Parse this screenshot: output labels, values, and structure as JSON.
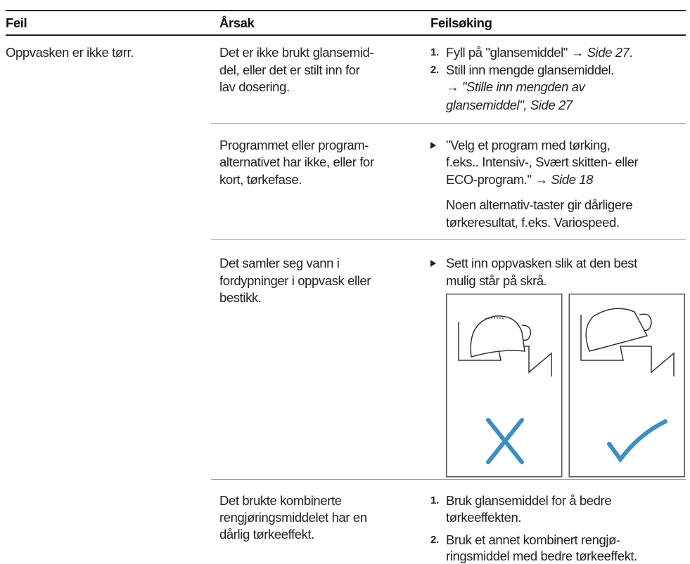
{
  "header": {
    "columns": [
      "Feil",
      "Årsak",
      "Feilsøking"
    ]
  },
  "table": {
    "rows": [
      {
        "problem": "Oppvasken er ikke tørr.",
        "causes": [
          {
            "cause": [
              "Det er ikke brukt glansemid-",
              "del, eller det er stilt inn for",
              "lav dosering."
            ],
            "remedies": [
              {
                "marker": "1.",
                "lines": [
                  [
                    {
                      "text": "Fyll på \"glansemiddel\" → "
                    },
                    {
                      "text": "Side 27",
                      "italic": true
                    },
                    {
                      "text": "."
                    }
                  ]
                ]
              },
              {
                "marker": "2.",
                "lines": [
                  [
                    {
                      "text": "Still inn mengde glansemiddel."
                    }
                  ],
                  [
                    {
                      "text": "→ "
                    },
                    {
                      "text": "\"Stille inn mengden av",
                      "italic": true
                    }
                  ],
                  [
                    {
                      "text": "glansemiddel\", Side 27",
                      "italic": true
                    }
                  ]
                ]
              }
            ]
          },
          {
            "cause": [
              "Programmet eller program-",
              "alternativet har ikke, eller for",
              "kort, tørkefase."
            ],
            "remedies": [
              {
                "bullet": true,
                "lines": [
                  [
                    {
                      "text": "\"Velg et program med tørking,"
                    }
                  ],
                  [
                    {
                      "text": "f.eks.. Intensiv-, Svært skitten- eller"
                    }
                  ],
                  [
                    {
                      "text": "ECO-program.\" → "
                    },
                    {
                      "text": "Side 18",
                      "italic": true
                    }
                  ]
                ]
              },
              {
                "lines": [
                  [
                    {
                      "text": "Noen alternativ-taster gir dårligere"
                    }
                  ],
                  [
                    {
                      "text": "tørkeresultat, f.eks. Variospeed."
                    }
                  ]
                ]
              }
            ]
          },
          {
            "cause": [
              "Det samler seg vann i",
              "fordypninger i oppvask eller",
              "bestikk."
            ],
            "remedies": [
              {
                "bullet": true,
                "lines": [
                  [
                    {
                      "text": "Sett inn oppvasken slik at den best"
                    }
                  ],
                  [
                    {
                      "text": "mulig står på skrå."
                    }
                  ]
                ]
              }
            ]
          },
          {
            "cause": [
              "Det brukte kombinerte",
              "rengjøringsmiddelet har en",
              "dårlig tørkeeffekt."
            ],
            "remedies": [
              {
                "marker": "1.",
                "lines": [
                  [
                    {
                      "text": "Bruk glansemiddel for å bedre"
                    }
                  ],
                  [
                    {
                      "text": "tørkeeffekten."
                    }
                  ]
                ]
              },
              {
                "marker": "2.",
                "lines": [
                  [
                    {
                      "text": "Bruk et annet kombinert rengjø-"
                    }
                  ],
                  [
                    {
                      "text": "ringsmiddel med bedre tørkeeffekt."
                    }
                  ]
                ]
              }
            ]
          }
        ]
      }
    ]
  }
}
